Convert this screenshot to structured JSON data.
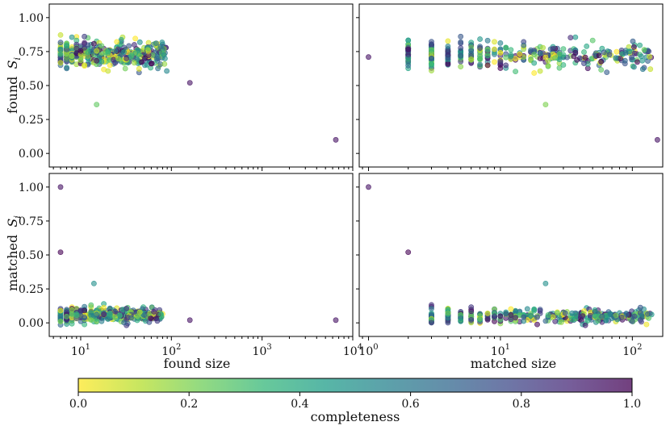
{
  "chart_data": [
    {
      "type": "scatter",
      "panel": "top-left",
      "xscale": "log",
      "xlim": [
        4.5,
        10000
      ],
      "ylim": [
        -0.1,
        1.1
      ],
      "ylabel": "found S_i",
      "xlabel": "",
      "xticklabels": [
        "10^1",
        "10^2",
        "10^3",
        "10^4"
      ],
      "yticklabels": [
        "0.00",
        "0.25",
        "0.50",
        "0.75",
        "1.00"
      ],
      "cluster": {
        "x_range": [
          6,
          90
        ],
        "y_center": 0.73,
        "y_spread": 0.09
      },
      "outliers": [
        {
          "x": 160,
          "y": 0.52,
          "c": 0.95
        },
        {
          "x": 6500,
          "y": 0.1,
          "c": 0.95
        },
        {
          "x": 15,
          "y": 0.36,
          "c": 0.25
        }
      ]
    },
    {
      "type": "scatter",
      "panel": "top-right",
      "xscale": "log",
      "xlim": [
        0.85,
        170
      ],
      "ylim": [
        -0.1,
        1.1
      ],
      "xlabel": "",
      "xticklabels": [
        "10^0",
        "10^1",
        "10^2"
      ],
      "cluster": {
        "x_range": [
          2,
          140
        ],
        "y_center": 0.73,
        "y_spread": 0.09
      },
      "outliers": [
        {
          "x": 1,
          "y": 0.71,
          "c": 0.95
        },
        {
          "x": 155,
          "y": 0.1,
          "c": 0.95
        },
        {
          "x": 22,
          "y": 0.36,
          "c": 0.2
        }
      ]
    },
    {
      "type": "scatter",
      "panel": "bottom-left",
      "xscale": "log",
      "xlim": [
        4.5,
        10000
      ],
      "ylim": [
        -0.1,
        1.1
      ],
      "ylabel": "matched S_i",
      "xlabel": "found size",
      "xticklabels": [
        "10^1",
        "10^2",
        "10^3",
        "10^4"
      ],
      "yticklabels": [
        "0.00",
        "0.25",
        "0.50",
        "0.75",
        "1.00"
      ],
      "cluster": {
        "x_range": [
          6,
          80
        ],
        "y_center": 0.06,
        "y_spread": 0.05
      },
      "outliers": [
        {
          "x": 6,
          "y": 1.0,
          "c": 0.95
        },
        {
          "x": 6,
          "y": 0.52,
          "c": 1.0
        },
        {
          "x": 160,
          "y": 0.02,
          "c": 0.95
        },
        {
          "x": 6500,
          "y": 0.02,
          "c": 0.95
        },
        {
          "x": 14,
          "y": 0.29,
          "c": 0.5
        }
      ]
    },
    {
      "type": "scatter",
      "panel": "bottom-right",
      "xscale": "log",
      "xlim": [
        0.85,
        170
      ],
      "ylim": [
        -0.1,
        1.1
      ],
      "xlabel": "matched size",
      "xticklabels": [
        "10^0",
        "10^1",
        "10^2"
      ],
      "cluster": {
        "x_range": [
          3,
          140
        ],
        "y_center": 0.05,
        "y_spread": 0.05
      },
      "outliers": [
        {
          "x": 1,
          "y": 1.0,
          "c": 0.95
        },
        {
          "x": 2,
          "y": 0.52,
          "c": 1.0
        },
        {
          "x": 22,
          "y": 0.29,
          "c": 0.5
        }
      ]
    }
  ],
  "colorbar": {
    "label": "completeness",
    "range": [
      0.0,
      1.0
    ],
    "ticklabels": [
      "0.0",
      "0.2",
      "0.4",
      "0.6",
      "0.8",
      "1.0"
    ],
    "colormap": "viridis_r",
    "stops": [
      "#fde725",
      "#b5de2b",
      "#6ece58",
      "#35b779",
      "#1f9e89",
      "#26828e",
      "#31688e",
      "#3e4989",
      "#482878",
      "#440154"
    ]
  },
  "labels": {
    "found_si_prefix": "found",
    "matched_si_prefix": "matched",
    "si_symbol": "S",
    "si_sub": "i",
    "found_size": "found size",
    "matched_size": "matched size",
    "ten": "10"
  }
}
